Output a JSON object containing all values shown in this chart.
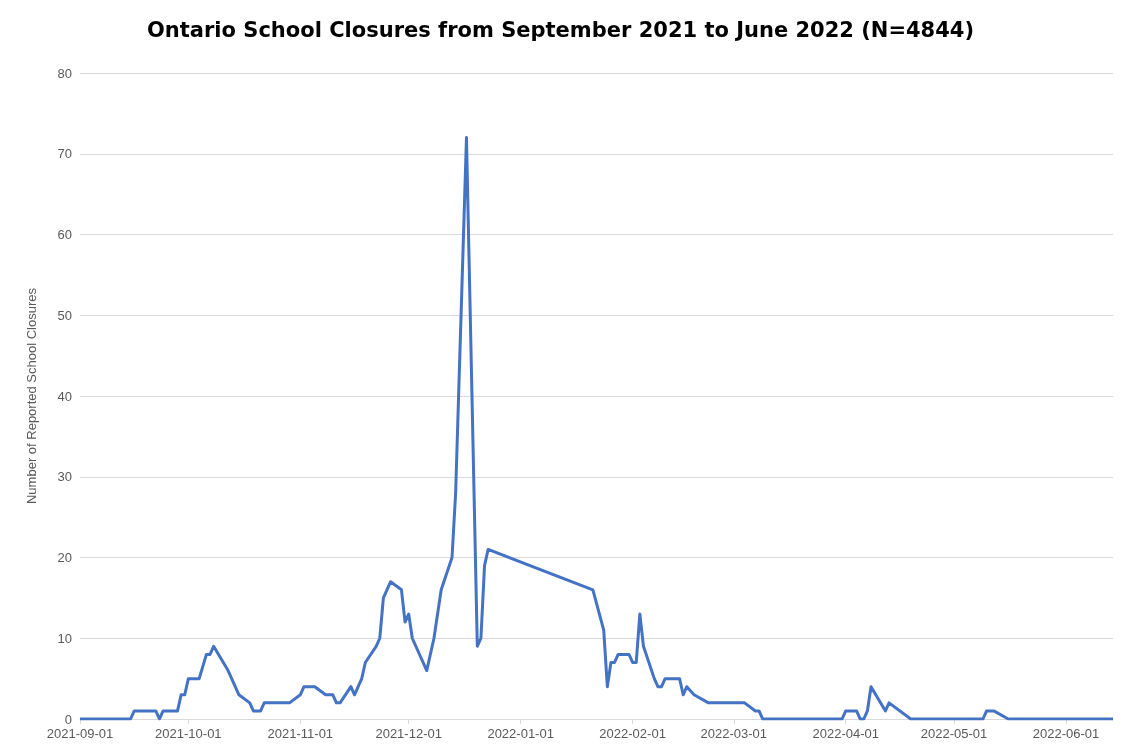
{
  "chart_data": {
    "type": "line",
    "title": "Ontario School Closures from September 2021 to June 2022 (N=4844)",
    "ylabel": "Number of Reported School Closures",
    "x": [
      "2021-09-01",
      "2021-09-15",
      "2021-09-16",
      "2021-09-22",
      "2021-09-23",
      "2021-09-24",
      "2021-09-28",
      "2021-09-29",
      "2021-09-30",
      "2021-10-01",
      "2021-10-04",
      "2021-10-06",
      "2021-10-07",
      "2021-10-08",
      "2021-10-12",
      "2021-10-15",
      "2021-10-18",
      "2021-10-19",
      "2021-10-21",
      "2021-10-22",
      "2021-10-29",
      "2021-11-01",
      "2021-11-02",
      "2021-11-05",
      "2021-11-08",
      "2021-11-10",
      "2021-11-11",
      "2021-11-12",
      "2021-11-15",
      "2021-11-16",
      "2021-11-18",
      "2021-11-19",
      "2021-11-22",
      "2021-11-23",
      "2021-11-24",
      "2021-11-26",
      "2021-11-29",
      "2021-11-30",
      "2021-12-01",
      "2021-12-02",
      "2021-12-06",
      "2021-12-08",
      "2021-12-10",
      "2021-12-13",
      "2021-12-14",
      "2021-12-17",
      "2021-12-20",
      "2021-12-21",
      "2021-12-22",
      "2021-12-23",
      "2022-01-21",
      "2022-01-24",
      "2022-01-25",
      "2022-01-26",
      "2022-01-27",
      "2022-01-28",
      "2022-01-31",
      "2022-02-01",
      "2022-02-02",
      "2022-02-03",
      "2022-02-04",
      "2022-02-07",
      "2022-02-08",
      "2022-02-09",
      "2022-02-10",
      "2022-02-14",
      "2022-02-15",
      "2022-02-16",
      "2022-02-18",
      "2022-02-22",
      "2022-03-04",
      "2022-03-07",
      "2022-03-08",
      "2022-03-09",
      "2022-03-31",
      "2022-04-01",
      "2022-04-04",
      "2022-04-05",
      "2022-04-06",
      "2022-04-07",
      "2022-04-08",
      "2022-04-12",
      "2022-04-13",
      "2022-04-19",
      "2022-05-09",
      "2022-05-10",
      "2022-05-12",
      "2022-05-16",
      "2022-06-14"
    ],
    "series": [
      {
        "color": "#4472c4",
        "values": [
          0,
          0,
          1,
          1,
          0,
          1,
          1,
          3,
          3,
          5,
          5,
          8,
          8,
          9,
          6,
          3,
          2,
          1,
          1,
          2,
          2,
          3,
          4,
          4,
          3,
          3,
          2,
          2,
          4,
          3,
          5,
          7,
          9,
          10,
          15,
          17,
          16,
          12,
          13,
          10,
          6,
          10,
          16,
          20,
          28,
          72,
          9,
          10,
          19,
          21,
          16,
          11,
          4,
          7,
          7,
          8,
          8,
          7,
          7,
          13,
          9,
          5,
          4,
          4,
          5,
          5,
          3,
          4,
          3,
          2,
          2,
          1,
          1,
          0,
          0,
          1,
          1,
          0,
          0,
          1,
          4,
          1,
          2,
          0,
          0,
          1,
          1,
          0,
          0
        ]
      }
    ],
    "xlim": [
      "2021-09-01",
      "2022-06-14"
    ],
    "xticks": [
      "2021-09-01",
      "2021-10-01",
      "2021-11-01",
      "2021-12-01",
      "2022-01-01",
      "2022-02-01",
      "2022-03-01",
      "2022-04-01",
      "2022-05-01",
      "2022-06-01"
    ],
    "ylim": [
      0,
      80
    ],
    "yticks": [
      0,
      10,
      20,
      30,
      40,
      50,
      60,
      70,
      80
    ],
    "grid": "y",
    "marker": "none",
    "line_style": "solid"
  }
}
